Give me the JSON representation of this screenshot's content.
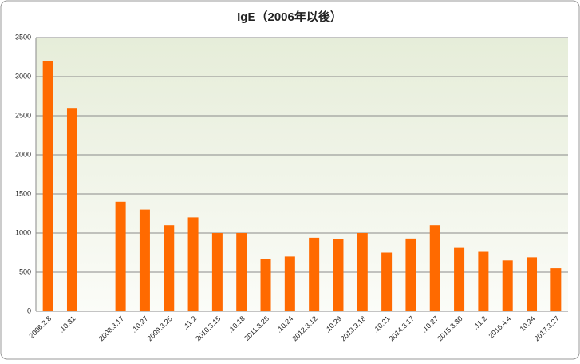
{
  "chart_data": {
    "type": "bar",
    "title": "IgE（2006年以後）",
    "categories": [
      "2006.2.8",
      ".10.31",
      null,
      "2008.3.17",
      ".10.27",
      "2009.3.25",
      ".11.2",
      "2010.3.15",
      ".10.18",
      "2011.3.28",
      ".10.24",
      "2012.3.12",
      ".10.29",
      "2013.3.18",
      ".10.21",
      "2014.3.17",
      ".10.27",
      "2015.3.30",
      ".11.2",
      "2016.4.4",
      "10.24",
      "2017.3.27"
    ],
    "values": [
      3200,
      2600,
      null,
      1400,
      1300,
      1100,
      1200,
      1000,
      1000,
      670,
      700,
      940,
      920,
      1000,
      750,
      930,
      1100,
      810,
      760,
      650,
      690,
      550
    ],
    "color": "#ff6a00",
    "ylim": [
      0,
      3500
    ],
    "yticks": [
      0,
      500,
      1000,
      1500,
      2000,
      2500,
      3000,
      3500
    ],
    "grid": true
  }
}
